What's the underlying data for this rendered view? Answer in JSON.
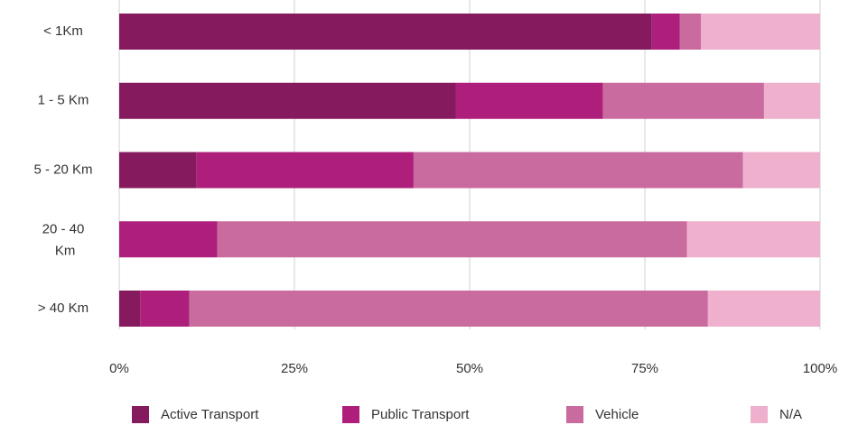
{
  "chart_data": {
    "type": "stacked_barh",
    "categories": [
      "< 1Km",
      "1 - 5 Km",
      "5 - 20 Km",
      "20 - 40 Km",
      "> 40 Km"
    ],
    "series": [
      {
        "name": "Active Transport",
        "color": "#851a5e",
        "values": [
          76,
          48,
          11,
          0,
          3
        ]
      },
      {
        "name": "Public Transport",
        "color": "#ad1f7b",
        "values": [
          4,
          21,
          31,
          14,
          7
        ]
      },
      {
        "name": "Vehicle",
        "color": "#c96b9e",
        "values": [
          3,
          23,
          47,
          67,
          74
        ]
      },
      {
        "name": "N/A",
        "color": "#eeb0cc",
        "values": [
          17,
          8,
          11,
          19,
          16
        ]
      }
    ],
    "xlim": [
      0,
      100
    ],
    "xticks": [
      {
        "value": 0,
        "label": "0%"
      },
      {
        "value": 25,
        "label": "25%"
      },
      {
        "value": 50,
        "label": "50%"
      },
      {
        "value": 75,
        "label": "75%"
      },
      {
        "value": 100,
        "label": "100%"
      }
    ],
    "grid": true,
    "legend": "bottom"
  }
}
